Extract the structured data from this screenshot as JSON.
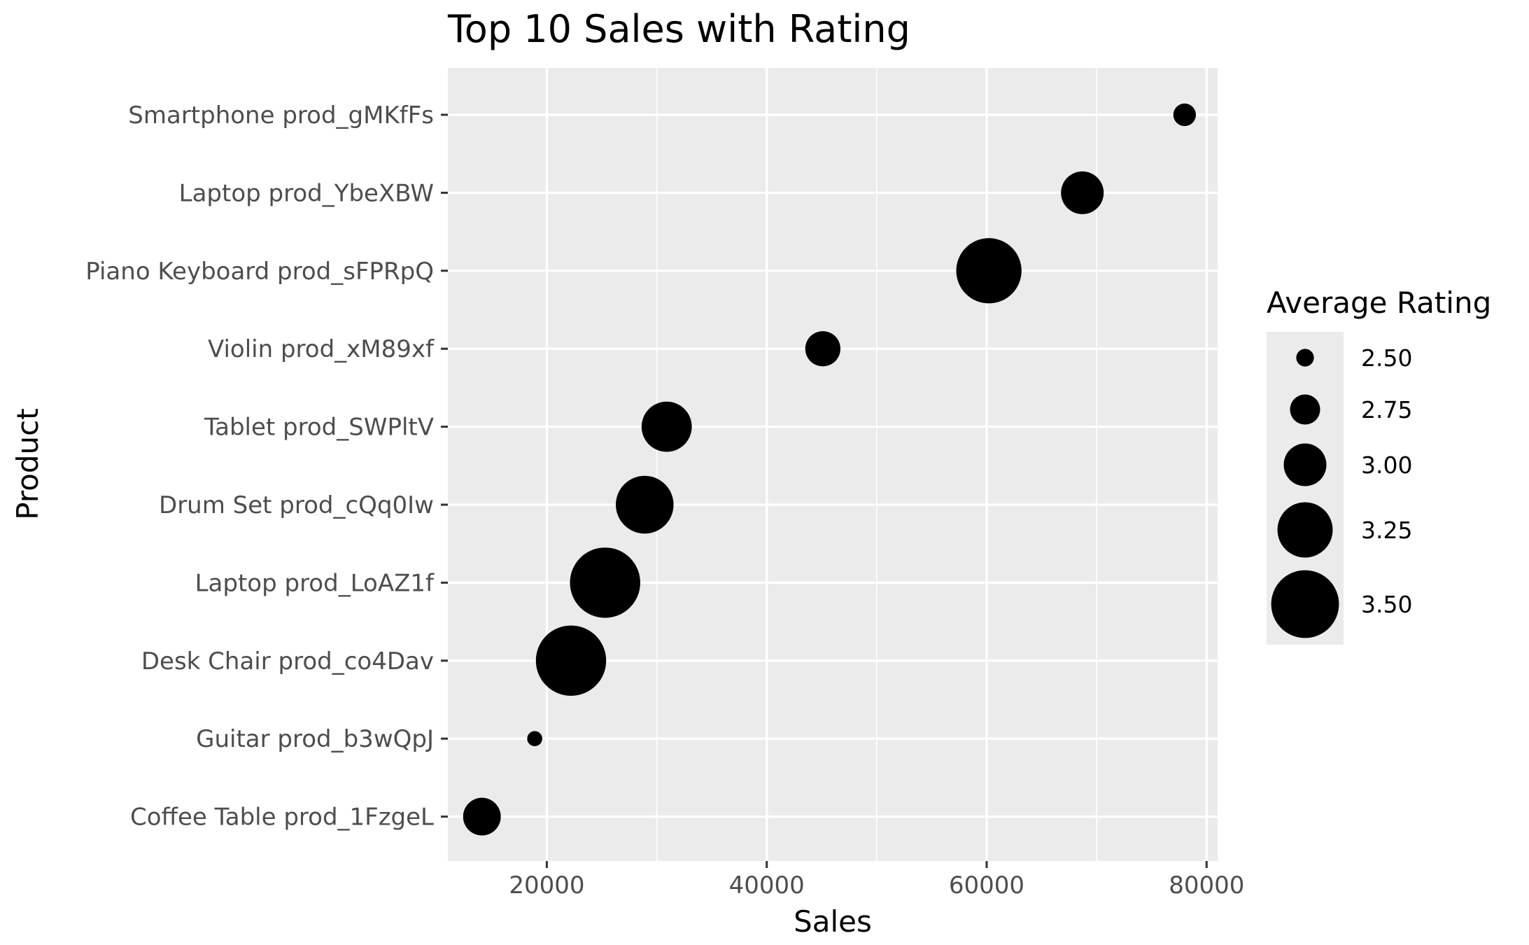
{
  "chart_data": {
    "type": "scatter",
    "title": "Top 10 Sales with Rating",
    "xlabel": "Sales",
    "ylabel": "Product",
    "xlim": [
      11000,
      81000
    ],
    "xticks": [
      20000,
      40000,
      60000,
      80000
    ],
    "grid": true,
    "legend_position": "right",
    "legend": {
      "title": "Average Rating",
      "entries": [
        {
          "label": "2.50",
          "rating": 2.5
        },
        {
          "label": "2.75",
          "rating": 2.75
        },
        {
          "label": "3.00",
          "rating": 3.0
        },
        {
          "label": "3.25",
          "rating": 3.25
        },
        {
          "label": "3.50",
          "rating": 3.5
        }
      ]
    },
    "size_range_rating": [
      2.4,
      3.6
    ],
    "colors": {
      "point": "#000000",
      "panel": "#ebebeb",
      "grid": "#ffffff",
      "legend_key": "#ebebeb"
    },
    "points": [
      {
        "product": "Smartphone prod_gMKfFs",
        "sales": 78000,
        "rating": 2.6
      },
      {
        "product": "Laptop prod_YbeXBW",
        "sales": 68700,
        "rating": 3.0
      },
      {
        "product": "Piano Keyboard prod_sFPRpQ",
        "sales": 60200,
        "rating": 3.45
      },
      {
        "product": "Violin prod_xM89xf",
        "sales": 45100,
        "rating": 2.85
      },
      {
        "product": "Tablet prod_SWPltV",
        "sales": 30900,
        "rating": 3.15
      },
      {
        "product": "Drum Set prod_cQq0Iw",
        "sales": 28900,
        "rating": 3.3
      },
      {
        "product": "Laptop prod_LoAZ1f",
        "sales": 25300,
        "rating": 3.55
      },
      {
        "product": "Desk Chair prod_co4Dav",
        "sales": 22200,
        "rating": 3.55
      },
      {
        "product": "Guitar prod_b3wQpJ",
        "sales": 18900,
        "rating": 2.45
      },
      {
        "product": "Coffee Table prod_1FzgeL",
        "sales": 14100,
        "rating": 2.9
      }
    ]
  }
}
